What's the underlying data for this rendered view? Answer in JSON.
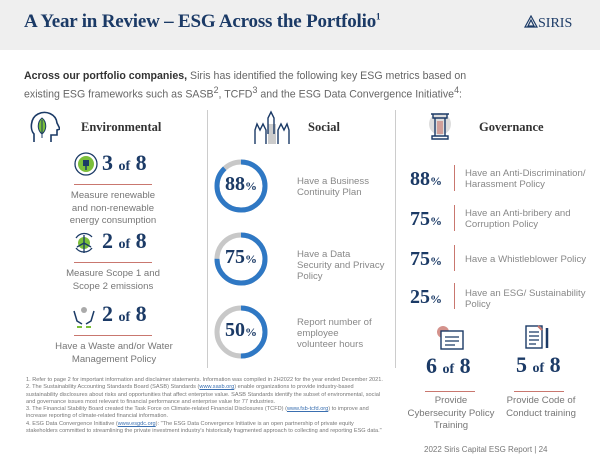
{
  "header": {
    "title": "A Year in Review – ESG Across the Portfolio",
    "title_sup": "1",
    "logo": "SIRIS"
  },
  "intro": {
    "bold": "Across our portfolio companies,",
    "text1": " Siris has identified the following key ESG metrics based on existing ESG frameworks such as SASB",
    "sup2": "2",
    "text2": ", TCFD",
    "sup3": "3",
    "text3": " and the ESG Data Convergence Initiative",
    "sup4": "4",
    "text4": ":"
  },
  "environmental": {
    "heading": "Environmental",
    "items": [
      {
        "n": "3",
        "of": "of",
        "total": "8",
        "text": "Measure renewable and non-renewable energy consumption",
        "icon": "plug-icon"
      },
      {
        "n": "2",
        "of": "of",
        "total": "8",
        "text": "Measure Scope 1 and Scope 2 emissions",
        "icon": "wind-turbine-icon"
      },
      {
        "n": "2",
        "of": "of",
        "total": "8",
        "text": "Have a Waste and/or Water Management Policy",
        "icon": "hands-water-icon"
      }
    ]
  },
  "social": {
    "heading": "Social",
    "items": [
      {
        "value": "88",
        "unit": "%",
        "percent": 88,
        "text": "Have a Business Continuity Plan"
      },
      {
        "value": "75",
        "unit": "%",
        "percent": 75,
        "text": "Have a Data Security and Privacy Policy"
      },
      {
        "value": "50",
        "unit": "%",
        "percent": 50,
        "text": "Report number of employee volunteer hours"
      }
    ]
  },
  "governance": {
    "heading": "Governance",
    "items": [
      {
        "value": "88",
        "unit": "%",
        "text": "Have an Anti-Discrimination/ Harassment Policy"
      },
      {
        "value": "75",
        "unit": "%",
        "text": "Have an Anti-bribery and Corruption Policy"
      },
      {
        "value": "75",
        "unit": "%",
        "text": "Have a Whistleblower Policy"
      },
      {
        "value": "25",
        "unit": "%",
        "text": "Have an ESG/ Sustainability Policy"
      }
    ],
    "counts": [
      {
        "n": "6",
        "of": "of",
        "total": "8",
        "text": "Provide Cybersecurity Policy Training"
      },
      {
        "n": "5",
        "of": "of",
        "total": "8",
        "text": "Provide Code of Conduct training"
      }
    ]
  },
  "colors": {
    "navy": "#1b3a66",
    "blue": "#2f78c4",
    "red": "#c9776f",
    "green": "#7bbf3a",
    "grey": "#c8c8c8"
  },
  "footnotes": [
    {
      "t": "1. Refer to page 2 for important information and disclaimer statements. Information was compiled in 2H2022 for the year ended December 2021."
    },
    {
      "t": "2. The Sustainability Accounting Standards Board (SASB) Standards (",
      "link": "www.sasb.org",
      "t2": ") enable organizations to provide industry-based sustainability disclosures about risks and opportunities that affect enterprise value. SASB Standards identify the subset of environmental, social and governance issues most relevant to financial performance and enterprise value for 77 industries."
    },
    {
      "t": "3. The Financial Stability Board created the Task Force on Climate-related Financial Disclosures (TCFD) (",
      "link": "www.fsb-tcfd.org",
      "t2": ") to improve and increase reporting of climate-related financial information."
    },
    {
      "t": "4. ESG Data Convergence Initiative (",
      "link": "www.esgdc.org",
      "t2": "): \"The ESG Data Convergence Initiative is an open partnership of private equity stakeholders committed to streamlining the private investment industry's historically fragmented approach to collecting and reporting ESG data.\""
    }
  ],
  "footer": {
    "text": "2022 Siris Capital ESG Report | 24"
  }
}
